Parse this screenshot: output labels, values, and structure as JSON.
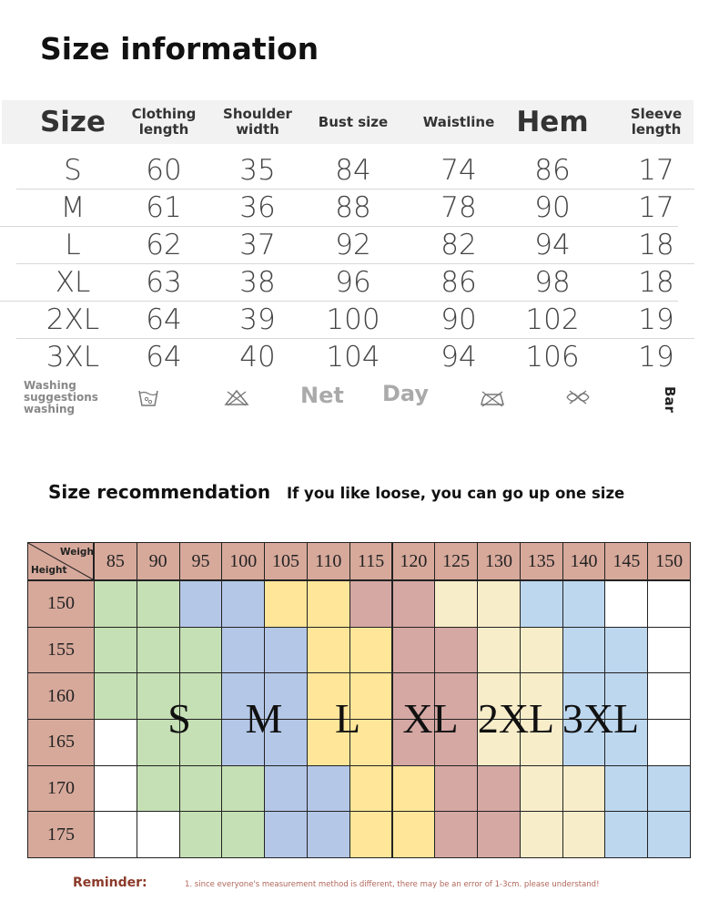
{
  "size_info": {
    "title": "Size information",
    "headers": [
      "Size",
      "Clothing length",
      "Shoulder width",
      "Bust size",
      "Waistline",
      "Hem",
      "Sleeve length"
    ],
    "rows": [
      [
        "S",
        "60",
        "35",
        "84",
        "74",
        "86",
        "17"
      ],
      [
        "M",
        "61",
        "36",
        "88",
        "78",
        "90",
        "17"
      ],
      [
        "L",
        "62",
        "37",
        "92",
        "82",
        "94",
        "18"
      ],
      [
        "XL",
        "63",
        "38",
        "96",
        "86",
        "98",
        "18"
      ],
      [
        "2XL",
        "64",
        "39",
        "100",
        "90",
        "102",
        "19"
      ],
      [
        "3XL",
        "64",
        "40",
        "104",
        "94",
        "106",
        "19"
      ]
    ]
  },
  "washing": {
    "label": "Washing suggestions washing",
    "items": [
      "Net",
      "Day",
      "Bar"
    ]
  },
  "recommendation": {
    "title": "Size recommendation",
    "note": "If you like loose, you can go up one size",
    "corner_weight": "Weight",
    "corner_height": "Height",
    "weights": [
      "85",
      "90",
      "95",
      "100",
      "105",
      "110",
      "115",
      "120",
      "125",
      "130",
      "135",
      "140",
      "145",
      "150"
    ],
    "heights": [
      "150",
      "155",
      "160",
      "165",
      "170",
      "175"
    ],
    "header_color": "#d7a99b",
    "cell_colors": [
      [
        "#c5e0b4",
        "#c5e0b4",
        "#b4c7e7",
        "#b4c7e7",
        "#ffe699",
        "#ffe699",
        "#d5a8a4",
        "#d5a8a4",
        "#f8edc9",
        "#f8edc9",
        "#bdd7ee",
        "#bdd7ee",
        "#ffffff",
        "#ffffff"
      ],
      [
        "#c5e0b4",
        "#c5e0b4",
        "#c5e0b4",
        "#b4c7e7",
        "#b4c7e7",
        "#ffe699",
        "#ffe699",
        "#d5a8a4",
        "#d5a8a4",
        "#f8edc9",
        "#f8edc9",
        "#bdd7ee",
        "#bdd7ee",
        "#ffffff"
      ],
      [
        "#c5e0b4",
        "#c5e0b4",
        "#c5e0b4",
        "#b4c7e7",
        "#b4c7e7",
        "#ffe699",
        "#ffe699",
        "#d5a8a4",
        "#d5a8a4",
        "#f8edc9",
        "#f8edc9",
        "#bdd7ee",
        "#bdd7ee",
        "#ffffff"
      ],
      [
        "#ffffff",
        "#c5e0b4",
        "#c5e0b4",
        "#b4c7e7",
        "#b4c7e7",
        "#ffe699",
        "#ffe699",
        "#d5a8a4",
        "#d5a8a4",
        "#f8edc9",
        "#f8edc9",
        "#bdd7ee",
        "#bdd7ee",
        "#ffffff"
      ],
      [
        "#ffffff",
        "#c5e0b4",
        "#c5e0b4",
        "#c5e0b4",
        "#b4c7e7",
        "#b4c7e7",
        "#ffe699",
        "#ffe699",
        "#d5a8a4",
        "#d5a8a4",
        "#f8edc9",
        "#f8edc9",
        "#bdd7ee",
        "#bdd7ee"
      ],
      [
        "#ffffff",
        "#ffffff",
        "#c5e0b4",
        "#c5e0b4",
        "#b4c7e7",
        "#b4c7e7",
        "#ffe699",
        "#ffe699",
        "#d5a8a4",
        "#d5a8a4",
        "#f8edc9",
        "#f8edc9",
        "#bdd7ee",
        "#bdd7ee"
      ]
    ],
    "size_labels": [
      "S",
      "M",
      "L",
      "XL",
      "2XL",
      "3XL"
    ]
  },
  "reminder": {
    "label": "Reminder:",
    "text": "1. since everyone's measurement method is different, there may be an error of 1-3cm. please understand!"
  }
}
